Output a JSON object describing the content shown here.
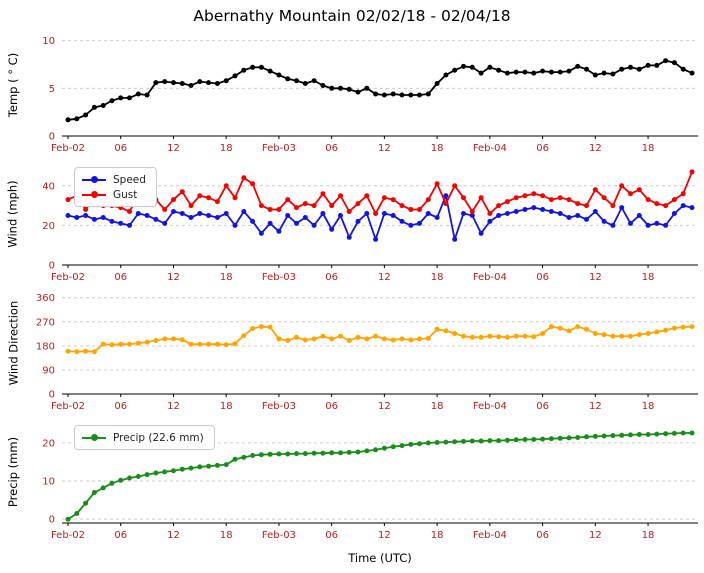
{
  "figure_title": "Abernathy Mountain 02/02/18 - 02/04/18",
  "chart_data": {
    "type": "line",
    "title": "Abernathy Mountain 02/02/18 - 02/04/18",
    "xlabel": "Time (UTC)",
    "tick_label_color": "#b22222",
    "grid_color": "#cccccc",
    "xtick_hours": [
      0,
      6,
      12,
      18,
      24,
      30,
      36,
      42,
      48,
      54,
      60,
      66
    ],
    "xtick_labels": [
      "Feb-02",
      "06",
      "12",
      "18",
      "Feb-03",
      "06",
      "12",
      "18",
      "Feb-04",
      "06",
      "12",
      "18"
    ],
    "x_hours_range": [
      0,
      71
    ],
    "subplots": [
      {
        "ylabel": "Temp ( ° C)",
        "yticks": [
          0,
          5,
          10
        ],
        "ylim": [
          0,
          10.8
        ],
        "legend": false,
        "series": [
          {
            "name": "Temp",
            "color": "#000000",
            "values": [
              1.7,
              1.8,
              2.2,
              3.0,
              3.2,
              3.7,
              4.0,
              4.0,
              4.4,
              4.3,
              5.6,
              5.7,
              5.6,
              5.5,
              5.3,
              5.7,
              5.6,
              5.5,
              5.8,
              6.3,
              6.9,
              7.2,
              7.2,
              6.8,
              6.4,
              6.0,
              5.8,
              5.5,
              5.8,
              5.3,
              5.0,
              5.0,
              4.9,
              4.6,
              5.0,
              4.4,
              4.3,
              4.4,
              4.3,
              4.3,
              4.3,
              4.4,
              5.5,
              6.4,
              6.9,
              7.3,
              7.2,
              6.6,
              7.2,
              6.9,
              6.6,
              6.7,
              6.7,
              6.6,
              6.8,
              6.7,
              6.7,
              6.8,
              7.3,
              7.0,
              6.4,
              6.6,
              6.5,
              7.0,
              7.2,
              7.0,
              7.4,
              7.4,
              7.9,
              7.7,
              7.0,
              6.6
            ]
          }
        ]
      },
      {
        "ylabel": "Wind (mph)",
        "yticks": [
          0,
          20,
          40
        ],
        "ylim": [
          0,
          52
        ],
        "legend": true,
        "series": [
          {
            "name": "Speed",
            "color": "#1414e0",
            "values": [
              25,
              24,
              25,
              23,
              24,
              22,
              21,
              20,
              26,
              25,
              23,
              21,
              27,
              26,
              24,
              26,
              25,
              24,
              26,
              20,
              27,
              22,
              16,
              21,
              17,
              25,
              21,
              24,
              20,
              26,
              18,
              25,
              14,
              22,
              26,
              13,
              26,
              25,
              22,
              20,
              21,
              26,
              24,
              35,
              13,
              26,
              25,
              16,
              22,
              25,
              26,
              27,
              28,
              29,
              28,
              27,
              26,
              24,
              25,
              23,
              27,
              22,
              20,
              29,
              21,
              25,
              20,
              21,
              20,
              26,
              30,
              29
            ]
          },
          {
            "name": "Gust",
            "color": "#f40000",
            "values": [
              33,
              35,
              28,
              34,
              30,
              30,
              29,
              27,
              35,
              31,
              33,
              28,
              33,
              37,
              30,
              35,
              34,
              32,
              40,
              34,
              44,
              41,
              30,
              28,
              28,
              33,
              29,
              31,
              30,
              36,
              30,
              35,
              27,
              31,
              35,
              26,
              34,
              33,
              30,
              28,
              28,
              33,
              41,
              31,
              40,
              34,
              27,
              34,
              26,
              30,
              32,
              34,
              35,
              36,
              35,
              33,
              34,
              33,
              31,
              30,
              38,
              34,
              30,
              40,
              36,
              38,
              33,
              31,
              30,
              33,
              36,
              47
            ]
          }
        ]
      },
      {
        "ylabel": "Wind Direction",
        "yticks": [
          0,
          90,
          180,
          270,
          360
        ],
        "ylim": [
          0,
          385
        ],
        "legend": false,
        "series": [
          {
            "name": "Direction",
            "color": "#ffa500",
            "values": [
              160,
              158,
              160,
              158,
              186,
              184,
              186,
              186,
              190,
              194,
              200,
              206,
              206,
              203,
              186,
              186,
              186,
              186,
              184,
              188,
              218,
              245,
              252,
              250,
              206,
              200,
              212,
              202,
              206,
              216,
              206,
              216,
              200,
              212,
              206,
              216,
              206,
              202,
              206,
              202,
              206,
              208,
              242,
              236,
              226,
              216,
              212,
              212,
              216,
              214,
              212,
              216,
              216,
              214,
              226,
              252,
              246,
              236,
              252,
              242,
              226,
              222,
              216,
              216,
              216,
              222,
              226,
              232,
              238,
              246,
              250,
              252
            ]
          }
        ]
      },
      {
        "ylabel": "Precip (mm)",
        "yticks": [
          0,
          10,
          20
        ],
        "ylim": [
          -1,
          26
        ],
        "legend": true,
        "series": [
          {
            "name": "Precip (22.6 mm)",
            "color": "#1a8c1a",
            "values": [
              0,
              1.5,
              4.2,
              7.0,
              8.2,
              9.4,
              10.2,
              10.8,
              11.2,
              11.7,
              12.1,
              12.4,
              12.7,
              13.1,
              13.4,
              13.7,
              13.9,
              14.1,
              14.3,
              15.7,
              16.2,
              16.7,
              16.9,
              17.0,
              17.1,
              17.1,
              17.2,
              17.2,
              17.3,
              17.3,
              17.4,
              17.4,
              17.5,
              17.6,
              17.9,
              18.2,
              18.6,
              19.0,
              19.3,
              19.6,
              19.8,
              20.0,
              20.1,
              20.2,
              20.3,
              20.4,
              20.5,
              20.5,
              20.6,
              20.6,
              20.7,
              20.8,
              20.9,
              20.9,
              21.0,
              21.1,
              21.2,
              21.3,
              21.4,
              21.6,
              21.7,
              21.8,
              21.9,
              22.0,
              22.1,
              22.2,
              22.2,
              22.3,
              22.4,
              22.5,
              22.6,
              22.6
            ]
          }
        ]
      }
    ]
  }
}
